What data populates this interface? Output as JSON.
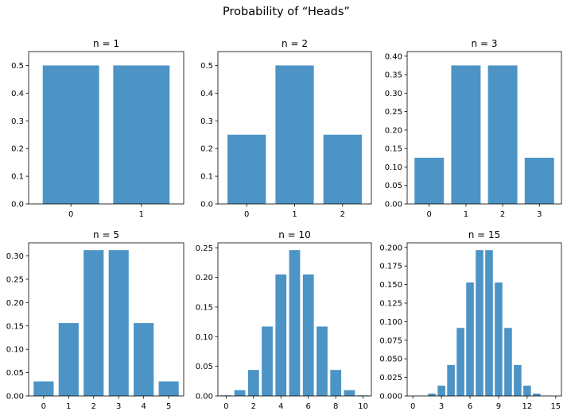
{
  "title": "Probability of “Heads”",
  "colors": {
    "bar": "#4c94c5",
    "axis": "#000000",
    "background": "#ffffff"
  },
  "chart_data": [
    {
      "type": "bar",
      "title": "n = 1",
      "n": 1,
      "categories": [
        "0",
        "1"
      ],
      "values": [
        0.5,
        0.5
      ],
      "xticks": [
        "0",
        "1"
      ],
      "yticks": [
        "0.0",
        "0.1",
        "0.2",
        "0.3",
        "0.4",
        "0.5"
      ],
      "ylim": [
        0,
        0.55
      ],
      "grid": false
    },
    {
      "type": "bar",
      "title": "n = 2",
      "n": 2,
      "categories": [
        "0",
        "1",
        "2"
      ],
      "values": [
        0.25,
        0.5,
        0.25
      ],
      "xticks": [
        "0",
        "1",
        "2"
      ],
      "yticks": [
        "0.0",
        "0.1",
        "0.2",
        "0.3",
        "0.4",
        "0.5"
      ],
      "ylim": [
        0,
        0.55
      ],
      "grid": false
    },
    {
      "type": "bar",
      "title": "n = 3",
      "n": 3,
      "categories": [
        "0",
        "1",
        "2",
        "3"
      ],
      "values": [
        0.125,
        0.375,
        0.375,
        0.125
      ],
      "xticks": [
        "0",
        "1",
        "2",
        "3"
      ],
      "yticks": [
        "0.00",
        "0.05",
        "0.10",
        "0.15",
        "0.20",
        "0.25",
        "0.30",
        "0.35",
        "0.40"
      ],
      "ylim": [
        0,
        0.4125
      ],
      "grid": false
    },
    {
      "type": "bar",
      "title": "n = 5",
      "n": 5,
      "categories": [
        "0",
        "1",
        "2",
        "3",
        "4",
        "5"
      ],
      "values": [
        0.03125,
        0.15625,
        0.3125,
        0.3125,
        0.15625,
        0.03125
      ],
      "xticks": [
        "0",
        "1",
        "2",
        "3",
        "4",
        "5"
      ],
      "yticks": [
        "0.00",
        "0.05",
        "0.10",
        "0.15",
        "0.20",
        "0.25",
        "0.30"
      ],
      "ylim": [
        0,
        0.3281
      ],
      "grid": false
    },
    {
      "type": "bar",
      "title": "n = 10",
      "n": 10,
      "categories": [
        "0",
        "1",
        "2",
        "3",
        "4",
        "5",
        "6",
        "7",
        "8",
        "9",
        "10"
      ],
      "values": [
        0.000977,
        0.009766,
        0.043945,
        0.117188,
        0.205078,
        0.246094,
        0.205078,
        0.117188,
        0.043945,
        0.009766,
        0.000977
      ],
      "xticks": [
        "0",
        "2",
        "4",
        "6",
        "8",
        "10"
      ],
      "yticks": [
        "0.00",
        "0.05",
        "0.10",
        "0.15",
        "0.20",
        "0.25"
      ],
      "ylim": [
        0,
        0.2584
      ],
      "grid": false
    },
    {
      "type": "bar",
      "title": "n = 15",
      "n": 15,
      "categories": [
        "0",
        "1",
        "2",
        "3",
        "4",
        "5",
        "6",
        "7",
        "8",
        "9",
        "10",
        "11",
        "12",
        "13",
        "14",
        "15"
      ],
      "values": [
        3.1e-05,
        0.000458,
        0.003204,
        0.013885,
        0.041656,
        0.091644,
        0.15274,
        0.196381,
        0.196381,
        0.15274,
        0.091644,
        0.041656,
        0.013885,
        0.003204,
        0.000458,
        3.1e-05
      ],
      "xticks": [
        "0",
        "3",
        "6",
        "9",
        "12",
        "15"
      ],
      "yticks": [
        "0.000",
        "0.025",
        "0.050",
        "0.075",
        "0.100",
        "0.125",
        "0.150",
        "0.175",
        "0.200"
      ],
      "ylim": [
        0,
        0.2062
      ],
      "grid": false
    }
  ]
}
